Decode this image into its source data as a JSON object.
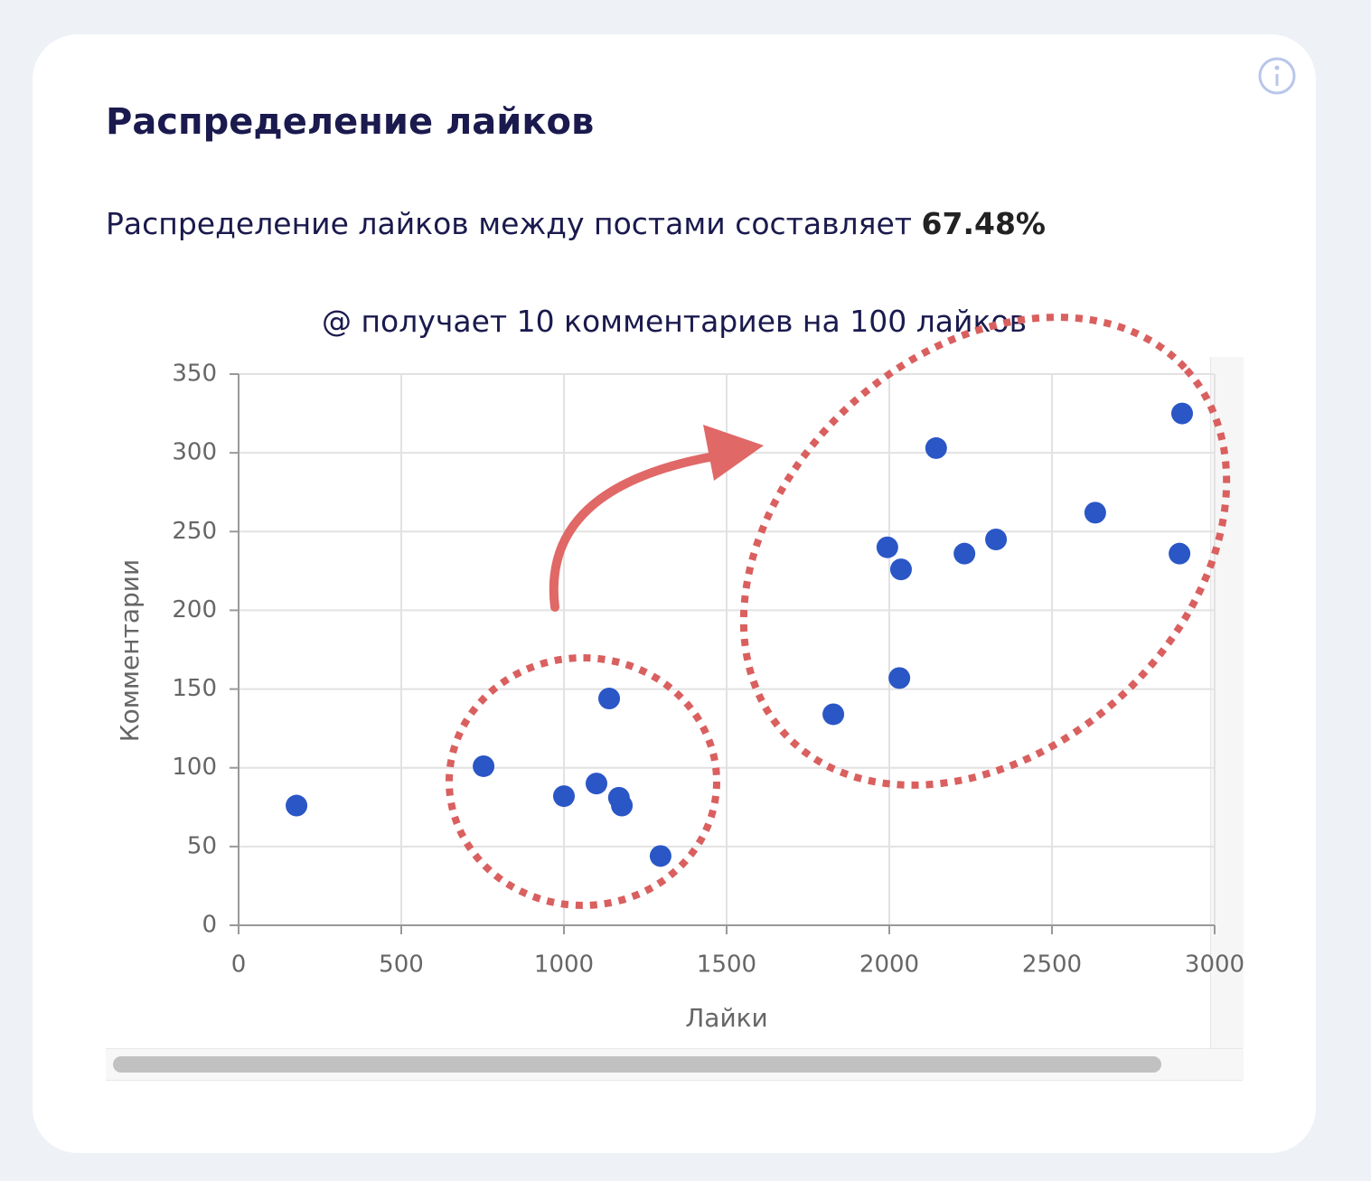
{
  "header": {
    "title": "Распределение лайков"
  },
  "summary": {
    "text": "Распределение лайков между постами составляет",
    "value": "67.48%"
  },
  "chart_data": {
    "type": "scatter",
    "title": "@ получает 10 комментариев на 100 лайков",
    "x_label": "Лайки",
    "y_label": "Комментарии",
    "series": [
      {
        "color": "#2a56c6",
        "x": [
          178,
          753,
          1000,
          1100,
          1139,
          1169,
          1178,
          1297,
          1828,
          2031,
          1994,
          2036,
          2144,
          2231,
          2328,
          2633,
          2892,
          2900
        ],
        "values": [
          76,
          101,
          82,
          90,
          144,
          81,
          76,
          44,
          134,
          157,
          240,
          226,
          303,
          236,
          245,
          262,
          236,
          325
        ]
      }
    ],
    "xlim": [
      0,
      3000
    ],
    "ylim": [
      0,
      350
    ],
    "xticks": [
      0,
      500,
      1000,
      1500,
      2000,
      2500,
      3000
    ],
    "yticks": [
      0,
      50,
      100,
      150,
      200,
      250,
      300,
      350
    ],
    "grid": true
  }
}
